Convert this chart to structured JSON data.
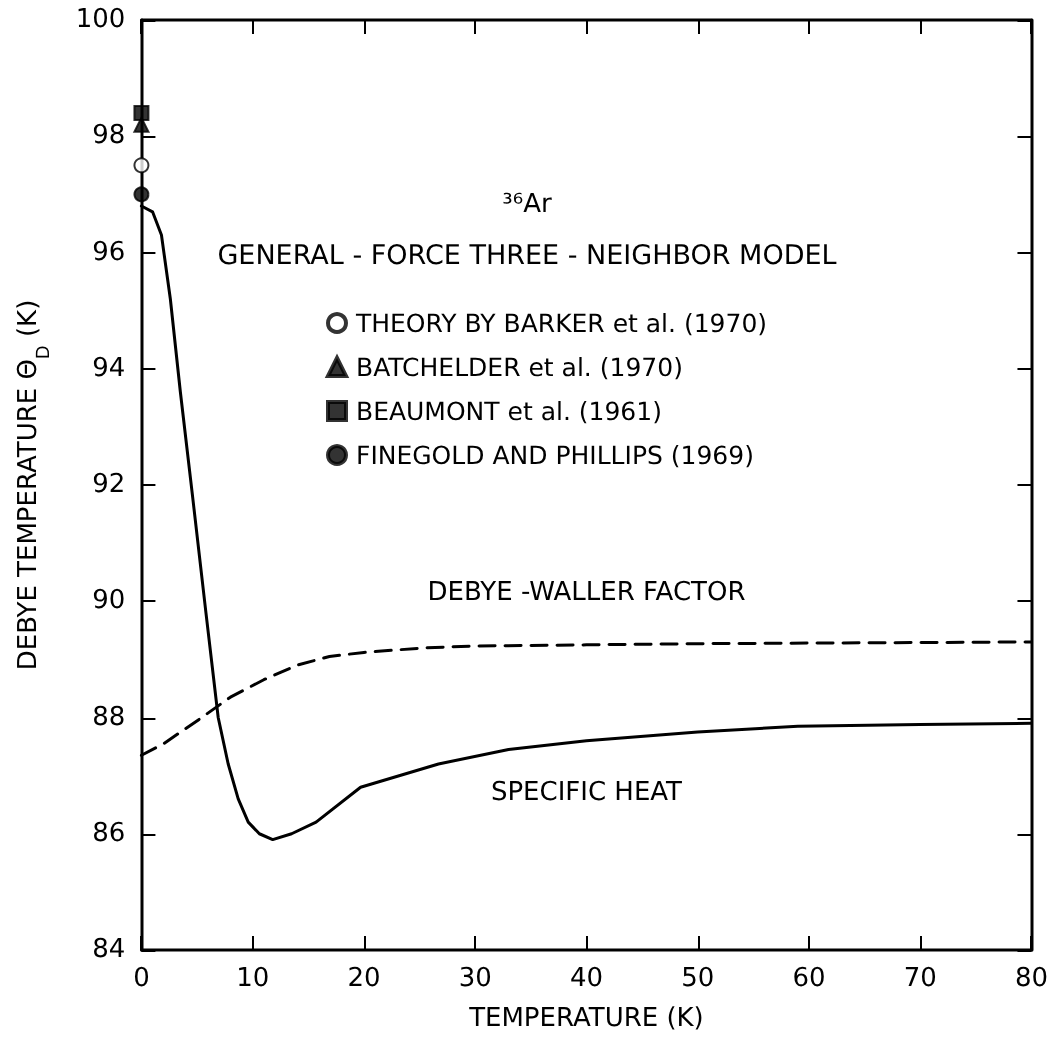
{
  "chart_data": {
    "type": "line",
    "xlabel": "TEMPERATURE (K)",
    "ylabel": "DEBYE TEMPERATURE Θ$_{D}$ (K)",
    "annotations": [
      "³⁶Ar",
      "GENERAL - FORCE THREE - NEIGHBOR MODEL"
    ],
    "xlim": [
      0,
      80
    ],
    "xticks": [
      0,
      10,
      20,
      30,
      40,
      50,
      60,
      70,
      80
    ],
    "ylim": [
      84,
      100
    ],
    "yticks": [
      84,
      86,
      88,
      90,
      92,
      94,
      96,
      98,
      100
    ],
    "grid": false,
    "legend": "top",
    "series": [
      {
        "type": "scatter",
        "name": "THEORY BY BARKER et al. (1970)",
        "marker": "circle",
        "color": "#ffffff",
        "x": [
          0
        ],
        "values": [
          97.5
        ]
      },
      {
        "type": "scatter",
        "name": "BATCHELDER et al. (1970)",
        "marker": "triangle",
        "color": "#000000",
        "x": [
          0
        ],
        "values": [
          98.2
        ]
      },
      {
        "type": "scatter",
        "name": "BEAUMONT et al. (1961)",
        "marker": "square",
        "color": "#000000",
        "x": [
          0
        ],
        "values": [
          98.4
        ]
      },
      {
        "type": "scatter",
        "name": "FINEGOLD AND PHILLIPS (1969)",
        "marker": "circle",
        "color": "#000000",
        "x": [
          0
        ],
        "values": [
          97.0
        ]
      },
      {
        "name": "DEBYE -WALLER FACTOR",
        "line_style": "dashed",
        "marker": "none",
        "color": "#000000",
        "x": [
          0,
          2,
          5.2,
          8,
          11,
          14,
          16.9,
          20,
          25.6,
          30,
          40,
          50,
          60,
          70,
          80
        ],
        "values": [
          87.35,
          87.55,
          87.97,
          88.35,
          88.65,
          88.9,
          89.05,
          89.12,
          89.2,
          89.23,
          89.25,
          89.27,
          89.28,
          89.29,
          89.3
        ]
      },
      {
        "name": "SPECIFIC HEAT",
        "line_style": "solid",
        "marker": "none",
        "color": "#000000",
        "x": [
          0,
          1,
          1.8,
          2.6,
          3.5,
          4.6,
          5.8,
          6.9,
          7.8,
          8.7,
          9.6,
          10.6,
          11.8,
          13.5,
          15.7,
          19.7,
          26.7,
          33,
          40,
          50,
          59,
          70,
          80
        ],
        "values": [
          96.8,
          96.7,
          96.3,
          95.2,
          93.6,
          91.8,
          89.8,
          88.0,
          87.2,
          86.6,
          86.2,
          86.0,
          85.9,
          86.0,
          86.2,
          86.8,
          87.2,
          87.45,
          87.6,
          87.75,
          87.85,
          87.88,
          87.9
        ]
      }
    ]
  }
}
